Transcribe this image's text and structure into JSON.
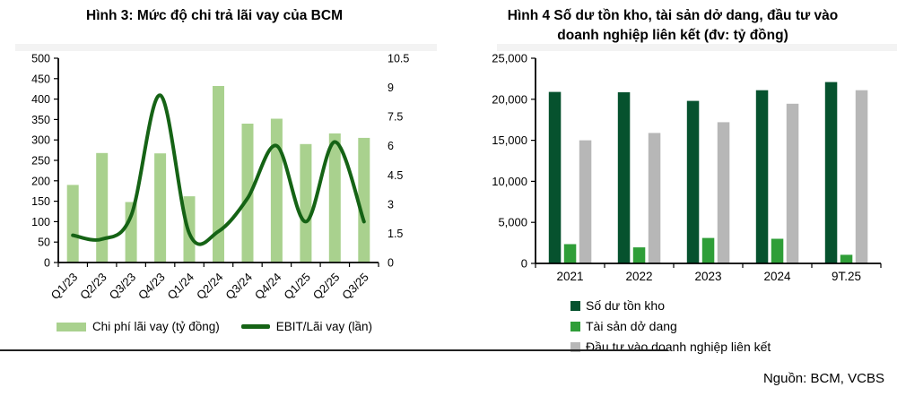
{
  "figure4": {
    "title_line1": "Hình 4 Số dư tồn kho, tài sản dở dang, đầu tư vào",
    "title_line2": "doanh nghiệp liên kết (đv: tỷ đồng)"
  },
  "source": "Nguồn: BCM, VCBS",
  "chart_data": [
    {
      "type": "bar+line",
      "title": "Hình 3: Mức độ chi trả lãi vay của BCM",
      "categories": [
        "Q1/23",
        "Q2/23",
        "Q3/23",
        "Q4/23",
        "Q1/24",
        "Q2/24",
        "Q3/24",
        "Q4/24",
        "Q1/25",
        "Q2/25",
        "Q3/25"
      ],
      "series": [
        {
          "name": "Chi phí lãi vay (tỷ đồng)",
          "type": "bar",
          "axis": "left",
          "color": "#a9d18e",
          "values": [
            190,
            268,
            148,
            267,
            162,
            432,
            340,
            352,
            290,
            316,
            305
          ]
        },
        {
          "name": "EBIT/Lãi vay (lần)",
          "type": "line",
          "axis": "right",
          "color": "#156315",
          "values": [
            1.4,
            1.2,
            2.4,
            8.6,
            1.5,
            1.6,
            3.3,
            6.0,
            2.1,
            6.2,
            2.1
          ]
        }
      ],
      "y_axis_left": {
        "min": 0,
        "max": 500,
        "step": 50,
        "tick_labels": [
          "0",
          "50",
          "100",
          "150",
          "200",
          "250",
          "300",
          "350",
          "400",
          "450",
          "500"
        ]
      },
      "y_axis_right": {
        "min": 0,
        "max": 10.5,
        "step": 1.5,
        "tick_labels": [
          "0",
          "1.5",
          "3",
          "4.5",
          "6",
          "7.5",
          "9",
          "10.5"
        ]
      },
      "grid": false,
      "legend_position": "bottom"
    },
    {
      "type": "bar",
      "title": "Hình 4 Số dư tồn kho, tài sản dở dang, đầu tư vào doanh nghiệp liên kết (đv: tỷ đồng)",
      "categories": [
        "2021",
        "2022",
        "2023",
        "2024",
        "9T.25"
      ],
      "series": [
        {
          "name": "Số dư tồn kho",
          "color": "#06522e",
          "values": [
            20900,
            20850,
            19800,
            21100,
            22100
          ]
        },
        {
          "name": "Tài sản dở dang",
          "color": "#2f9e38",
          "values": [
            2350,
            1950,
            3100,
            3000,
            1050
          ]
        },
        {
          "name": "Đầu tư vào doanh nghiệp liên kết",
          "color": "#b7b7b7",
          "values": [
            15000,
            15900,
            17200,
            19450,
            21100
          ]
        }
      ],
      "y_axis": {
        "min": 0,
        "max": 25000,
        "step": 5000,
        "tick_labels": [
          "0",
          "5,000",
          "10,000",
          "15,000",
          "20,000",
          "25,000"
        ]
      },
      "grid": false,
      "legend_position": "bottom-left"
    }
  ]
}
